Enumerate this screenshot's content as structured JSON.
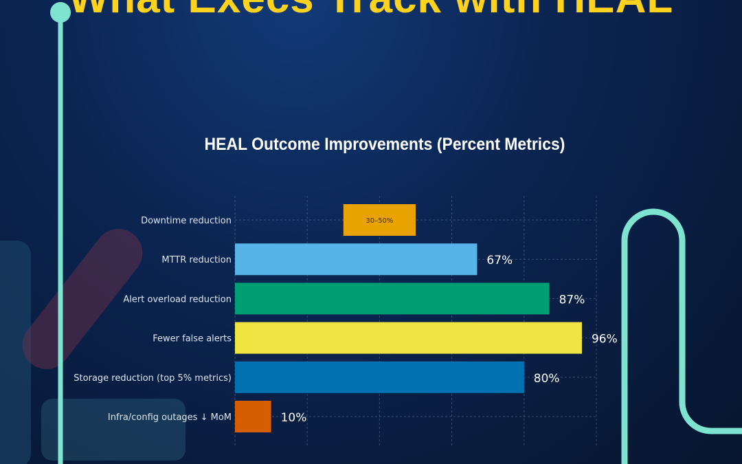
{
  "page_title": "What Execs Track with HEAL",
  "colors": {
    "accent_teal": "#7ee4cf",
    "title_yellow": "#ffd21e",
    "background": "#0b2552"
  },
  "chart_data": {
    "type": "bar",
    "orientation": "horizontal",
    "title": "HEAL Outcome Improvements (Percent Metrics)",
    "xlabel": "",
    "ylabel": "",
    "xlim": [
      0,
      100
    ],
    "grid": true,
    "categories": [
      "Downtime reduction",
      "MTTR reduction",
      "Alert overload reduction",
      "Fewer false alerts",
      "Storage reduction (top 5% metrics)",
      "Infra/config outages ↓ MoM"
    ],
    "bars": [
      {
        "start": 30,
        "end": 50,
        "label": "30–50%",
        "label_position": "inside",
        "color": "#e8a202"
      },
      {
        "start": 0,
        "end": 67,
        "label": "67%",
        "label_position": "outside",
        "color": "#56b4e9"
      },
      {
        "start": 0,
        "end": 87,
        "label": "87%",
        "label_position": "outside",
        "color": "#009e73"
      },
      {
        "start": 0,
        "end": 96,
        "label": "96%",
        "label_position": "outside",
        "color": "#f0e442"
      },
      {
        "start": 0,
        "end": 80,
        "label": "80%",
        "label_position": "outside",
        "color": "#0072b2"
      },
      {
        "start": 0,
        "end": 10,
        "label": "10%",
        "label_position": "outside",
        "color": "#d55e00"
      }
    ]
  }
}
